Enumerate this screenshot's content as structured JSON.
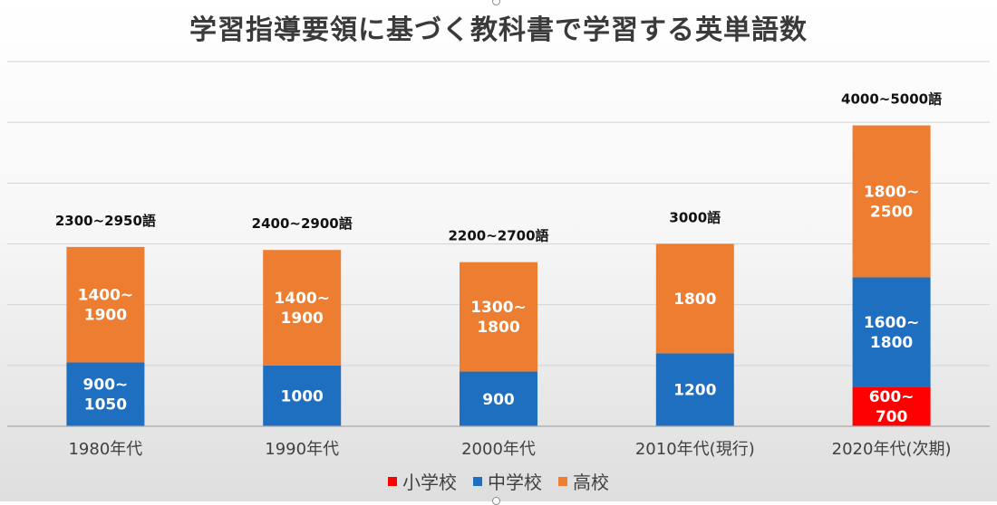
{
  "chart_data": {
    "type": "bar",
    "stacked": true,
    "title": "学習指導要領に基づく教科書で学習する英単語数",
    "categories": [
      "1980年代",
      "1990年代",
      "2000年代",
      "2010年代(現行)",
      "2020年代(次期)"
    ],
    "series": [
      {
        "name": "小学校",
        "color": "#ff0000",
        "values": [
          0,
          0,
          0,
          0,
          650
        ],
        "labels": [
          "",
          "",
          "",
          "",
          "600~\n700"
        ]
      },
      {
        "name": "中学校",
        "color": "#1f6fc1",
        "values": [
          1050,
          1000,
          900,
          1200,
          1800
        ],
        "labels": [
          "900~\n1050",
          "1000",
          "900",
          "1200",
          "1600~\n1800"
        ]
      },
      {
        "name": "高校",
        "color": "#ed7d31",
        "values": [
          1900,
          1900,
          1800,
          1800,
          2500
        ],
        "labels": [
          "1400~\n1900",
          "1400~\n1900",
          "1300~\n1800",
          "1800",
          "1800~\n2500"
        ]
      }
    ],
    "totals": [
      "2300~2950語",
      "2400~2900語",
      "2200~2700語",
      "3000語",
      "4000~5000語"
    ],
    "ylim": [
      0,
      6000
    ],
    "grid": true,
    "legend_position": "bottom"
  }
}
